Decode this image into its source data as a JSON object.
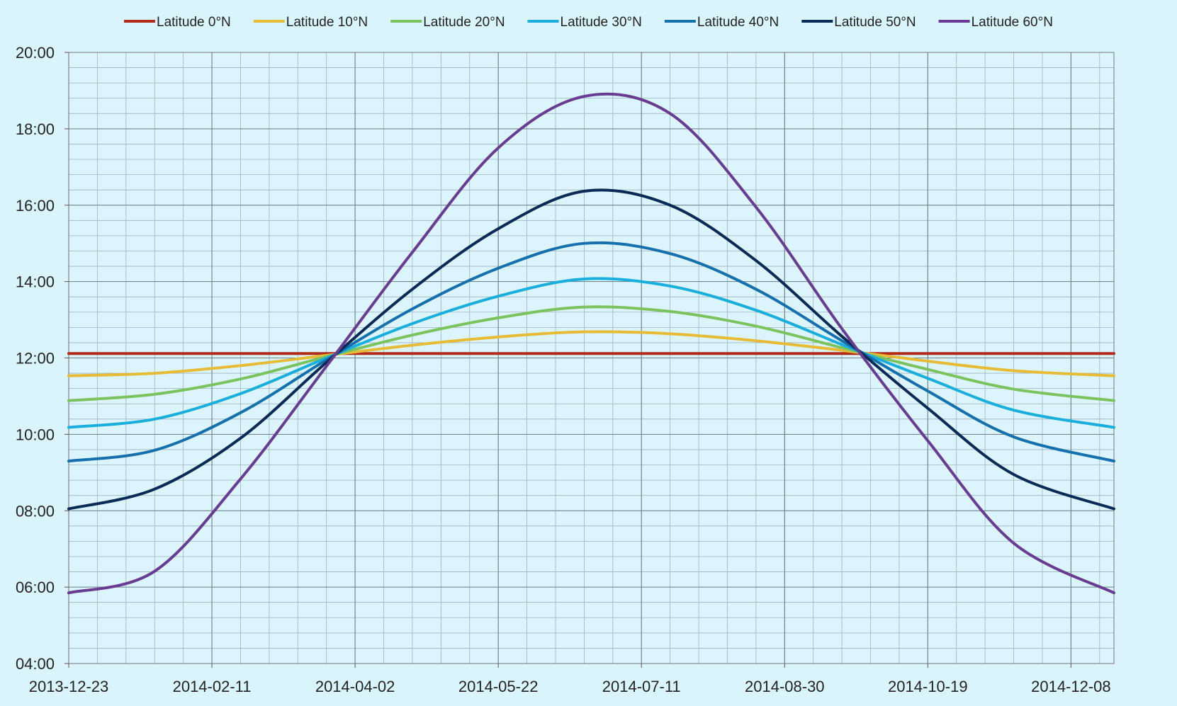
{
  "chart_data": {
    "type": "line",
    "title": "",
    "xlabel": "",
    "ylabel": "",
    "x_ticks": [
      "2013-12-23",
      "2014-02-11",
      "2014-04-02",
      "2014-05-22",
      "2014-07-11",
      "2014-08-30",
      "2014-10-19",
      "2014-12-08"
    ],
    "y_ticks": [
      "04:00",
      "06:00",
      "08:00",
      "10:00",
      "12:00",
      "14:00",
      "16:00",
      "18:00",
      "20:00"
    ],
    "ylim": [
      "04:00",
      "20:00"
    ],
    "xlim": [
      "2013-12-23",
      "2014-12-23"
    ],
    "grid": true,
    "legend_position": "top",
    "x": [
      "2013-12-23",
      "2014-01-22",
      "2014-02-21",
      "2014-03-23",
      "2014-04-22",
      "2014-05-22",
      "2014-06-21",
      "2014-07-21",
      "2014-08-20",
      "2014-09-19",
      "2014-10-19",
      "2014-11-18",
      "2014-12-23"
    ],
    "series": [
      {
        "name": "Latitude 0°N",
        "color": "#b22a1a",
        "values": [
          "12:07",
          "12:07",
          "12:07",
          "12:07",
          "12:07",
          "12:07",
          "12:07",
          "12:07",
          "12:07",
          "12:07",
          "12:07",
          "12:07",
          "12:07"
        ]
      },
      {
        "name": "Latitude 10°N",
        "color": "#e6bc37",
        "values": [
          "11:32",
          "11:36",
          "11:48",
          "12:04",
          "12:20",
          "12:33",
          "12:41",
          "12:38",
          "12:27",
          "12:12",
          "11:55",
          "11:40",
          "11:32"
        ]
      },
      {
        "name": "Latitude 20°N",
        "color": "#7cc360",
        "values": [
          "10:53",
          "11:03",
          "11:27",
          "12:02",
          "12:36",
          "13:03",
          "13:20",
          "13:13",
          "12:50",
          "12:16",
          "11:42",
          "11:11",
          "10:53"
        ]
      },
      {
        "name": "Latitude 30°N",
        "color": "#1aaedc",
        "values": [
          "10:11",
          "10:24",
          "11:04",
          "12:00",
          "12:54",
          "13:37",
          "14:04",
          "13:53",
          "13:15",
          "12:21",
          "11:28",
          "10:38",
          "10:11"
        ]
      },
      {
        "name": "Latitude 40°N",
        "color": "#1570ad",
        "values": [
          "09:18",
          "09:35",
          "10:34",
          "11:57",
          "13:17",
          "14:21",
          "15:00",
          "14:44",
          "13:48",
          "12:27",
          "11:08",
          "09:56",
          "09:18"
        ]
      },
      {
        "name": "Latitude 50°N",
        "color": "#0b2a55",
        "values": [
          "08:03",
          "08:34",
          "09:54",
          "11:53",
          "13:48",
          "15:23",
          "16:22",
          "16:00",
          "14:33",
          "12:34",
          "10:41",
          "08:57",
          "08:03"
        ]
      },
      {
        "name": "Latitude 60°N",
        "color": "#673c91",
        "values": [
          "05:51",
          "06:25",
          "08:50",
          "11:47",
          "14:46",
          "17:30",
          "18:51",
          "18:24",
          "15:57",
          "12:46",
          "09:50",
          "07:09",
          "05:51"
        ]
      }
    ]
  }
}
